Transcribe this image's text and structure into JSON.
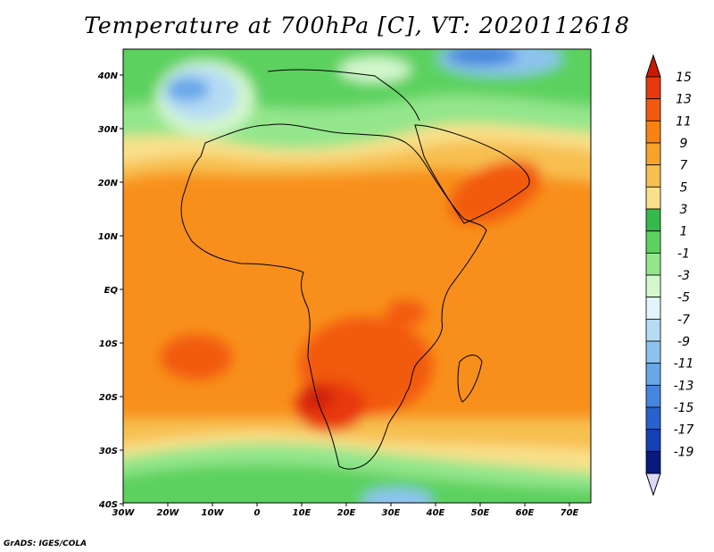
{
  "title": "Temperature at 700hPa [C], VT: 2020112618",
  "credit": "GrADS: IGES/COLA",
  "map": {
    "lon_ticks": [
      "30W",
      "20W",
      "10W",
      "0",
      "10E",
      "20E",
      "30E",
      "40E",
      "50E",
      "60E",
      "70E"
    ],
    "lat_ticks": [
      "40N",
      "30N",
      "20N",
      "10N",
      "EQ",
      "10S",
      "20S",
      "30S",
      "40S"
    ]
  },
  "colorbar": {
    "labels": [
      "15",
      "13",
      "11",
      "9",
      "7",
      "5",
      "3",
      "1",
      "-1",
      "-3",
      "-5",
      "-7",
      "-9",
      "-11",
      "-13",
      "-15",
      "-17",
      "-19"
    ],
    "colors": [
      "#e8380e",
      "#f25a10",
      "#f88214",
      "#f7a22a",
      "#f7bf50",
      "#f9e08a",
      "#36b84b",
      "#5cd15e",
      "#94e68c",
      "#d4f7ce",
      "#e3f4fb",
      "#b6dcf4",
      "#8ec3ef",
      "#68a8e8",
      "#4485de",
      "#2961cf",
      "#1640b6",
      "#0a1a7c"
    ],
    "over_color": "#cc1a00",
    "under_color": "#dadaf7"
  }
}
